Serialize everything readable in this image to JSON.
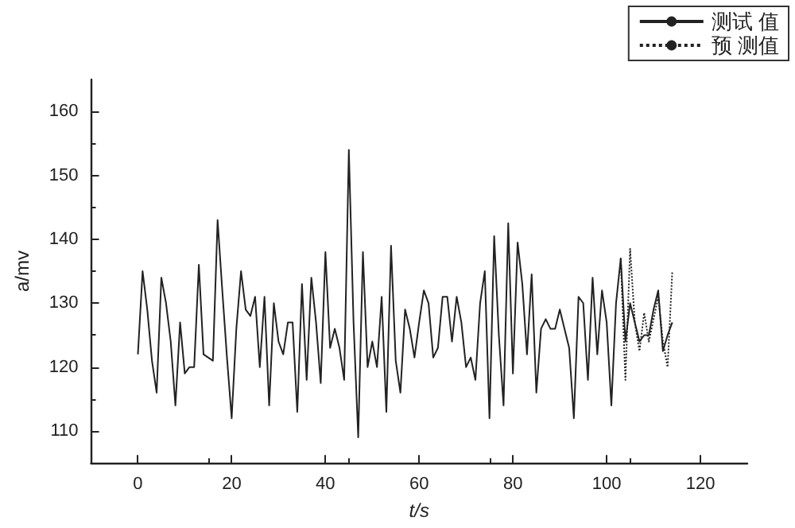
{
  "chart_data": {
    "type": "line",
    "xlabel": "t/s",
    "ylabel": "a/mv",
    "xlim": [
      -10,
      130
    ],
    "xticks": [
      0,
      20,
      40,
      60,
      80,
      100,
      120
    ],
    "ylim": [
      105,
      165
    ],
    "yticks": [
      110,
      120,
      130,
      140,
      150,
      160
    ],
    "grid": false,
    "legend": "top right",
    "marker": "none",
    "series": [
      {
        "name": "测试 值",
        "color": "#222222",
        "line_style": "solid",
        "x": [
          0,
          1,
          2,
          3,
          4,
          5,
          6,
          7,
          8,
          9,
          10,
          11,
          12,
          13,
          14,
          15,
          16,
          17,
          18,
          19,
          20,
          21,
          22,
          23,
          24,
          25,
          26,
          27,
          28,
          29,
          30,
          31,
          32,
          33,
          34,
          35,
          36,
          37,
          38,
          39,
          40,
          41,
          42,
          43,
          44,
          45,
          46,
          47,
          48,
          49,
          50,
          51,
          52,
          53,
          54,
          55,
          56,
          57,
          58,
          59,
          60,
          61,
          62,
          63,
          64,
          65,
          66,
          67,
          68,
          69,
          70,
          71,
          72,
          73,
          74,
          75,
          76,
          77,
          78,
          79,
          80,
          81,
          82,
          83,
          84,
          85,
          86,
          87,
          88,
          89,
          90,
          91,
          92,
          93,
          94,
          95,
          96,
          97,
          98,
          99,
          100,
          101,
          102,
          103,
          104,
          105,
          106,
          107,
          108,
          109,
          110,
          111,
          112,
          113,
          114
        ],
        "values": [
          122,
          135,
          129,
          121,
          116,
          134,
          130,
          124,
          114,
          127,
          119,
          120,
          120,
          136,
          122,
          121.5,
          121,
          143,
          132,
          121.5,
          112,
          126,
          135,
          129,
          128,
          131,
          120,
          131,
          114,
          130,
          124,
          122,
          127,
          127,
          113,
          133,
          118,
          134,
          127,
          117.5,
          138,
          123,
          126,
          123,
          118,
          154,
          127,
          109,
          138,
          120,
          124,
          120,
          131,
          113,
          139,
          121,
          116,
          129,
          126,
          121.5,
          127,
          132,
          130,
          121.5,
          123,
          131,
          131,
          124,
          131,
          127,
          120,
          121.5,
          118,
          130,
          135,
          112,
          140.5,
          125,
          114,
          142.5,
          119,
          139.5,
          133,
          122,
          134.5,
          116,
          126,
          127.5,
          126,
          126,
          129,
          126,
          123,
          112,
          131,
          130,
          118,
          134,
          122,
          132,
          127,
          114,
          130,
          137,
          124,
          130,
          127,
          124,
          125,
          125,
          129,
          132,
          122.5,
          125,
          127
        ]
      },
      {
        "name": "预 测值",
        "color": "#222222",
        "line_style": "dotted",
        "x": [
          103,
          104,
          105,
          106,
          107,
          108,
          109,
          110,
          111,
          112,
          113,
          114
        ],
        "values": [
          137,
          118,
          138.5,
          127,
          122.5,
          128.5,
          124,
          127.5,
          131,
          124,
          120,
          135
        ]
      }
    ]
  }
}
